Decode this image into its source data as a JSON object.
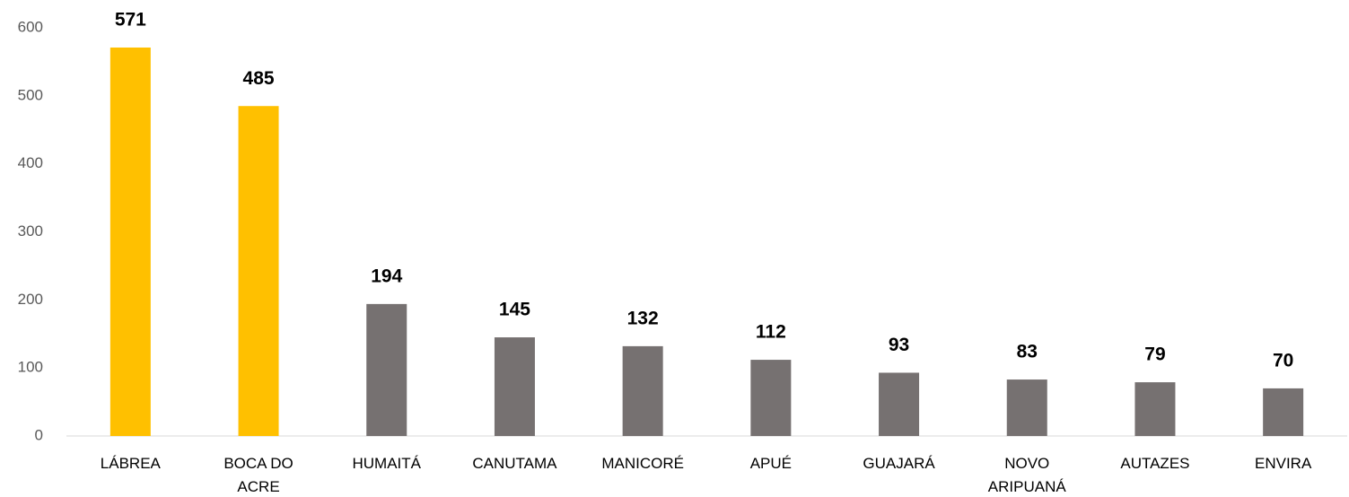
{
  "chart_data": {
    "type": "bar",
    "categories": [
      "LÁBREA",
      "BOCA DO ACRE",
      "HUMAITÁ",
      "CANUTAMA",
      "MANICORÉ",
      "APUÉ",
      "GUAJARÁ",
      "NOVO ARIPUANÁ",
      "AUTAZES",
      "ENVIRA"
    ],
    "values": [
      571,
      485,
      194,
      145,
      132,
      112,
      93,
      83,
      79,
      70
    ],
    "colors": [
      "#FFC000",
      "#FFC000",
      "#767171",
      "#767171",
      "#767171",
      "#767171",
      "#767171",
      "#767171",
      "#767171",
      "#767171"
    ],
    "ylim": [
      0,
      600
    ],
    "yticks": [
      0,
      100,
      200,
      300,
      400,
      500,
      600
    ],
    "grid": false
  }
}
